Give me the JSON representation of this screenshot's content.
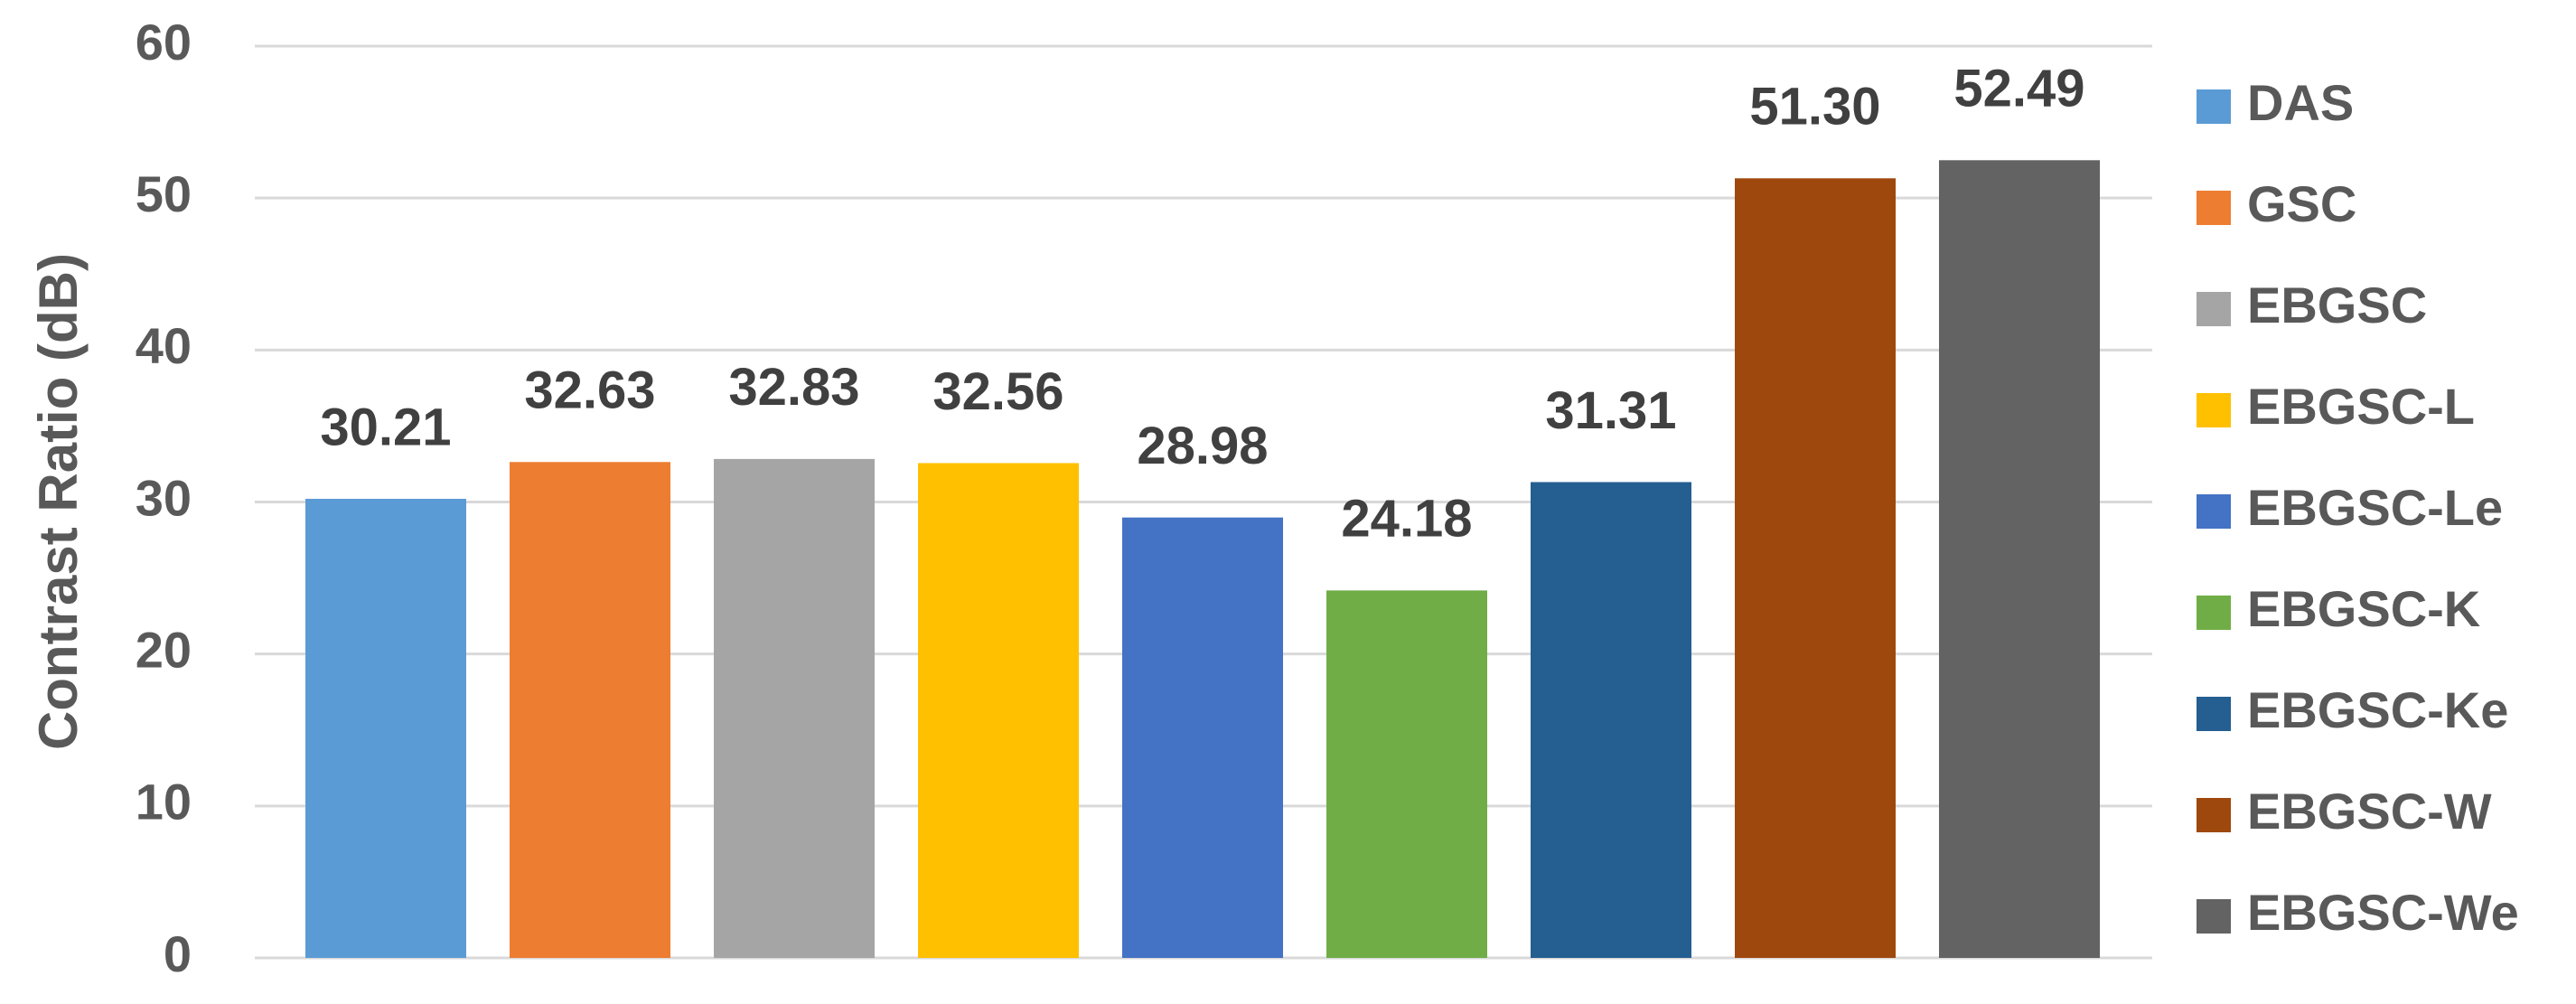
{
  "chart_data": {
    "type": "bar",
    "y_label": "Contrast Ratio (dB)",
    "categories": [
      null
    ],
    "series": [
      {
        "name": "DAS",
        "color": "#5b9bd5",
        "values": [
          30.21
        ],
        "value_labels": [
          "30.21"
        ]
      },
      {
        "name": "GSC",
        "color": "#ed7d31",
        "values": [
          32.63
        ],
        "value_labels": [
          "32.63"
        ]
      },
      {
        "name": "EBGSC",
        "color": "#a5a5a5",
        "values": [
          32.83
        ],
        "value_labels": [
          "32.83"
        ]
      },
      {
        "name": "EBGSC-L",
        "color": "#ffc000",
        "values": [
          32.56
        ],
        "value_labels": [
          "32.56"
        ]
      },
      {
        "name": "EBGSC-Le",
        "color": "#4472c4",
        "values": [
          28.98
        ],
        "value_labels": [
          "28.98"
        ]
      },
      {
        "name": "EBGSC-K",
        "color": "#70ad47",
        "values": [
          24.18
        ],
        "value_labels": [
          "24.18"
        ]
      },
      {
        "name": "EBGSC-Ke",
        "color": "#255e91",
        "values": [
          31.31
        ],
        "value_labels": [
          "31.31"
        ]
      },
      {
        "name": "EBGSC-W",
        "color": "#9e480e",
        "values": [
          51.3
        ],
        "value_labels": [
          "51.30"
        ]
      },
      {
        "name": "EBGSC-We",
        "color": "#636363",
        "values": [
          52.49
        ],
        "value_labels": [
          "52.49"
        ]
      }
    ],
    "ylim": [
      0,
      60
    ],
    "yticks": [
      0,
      10,
      20,
      30,
      40,
      50,
      60
    ],
    "grid": true,
    "legend": "right"
  }
}
